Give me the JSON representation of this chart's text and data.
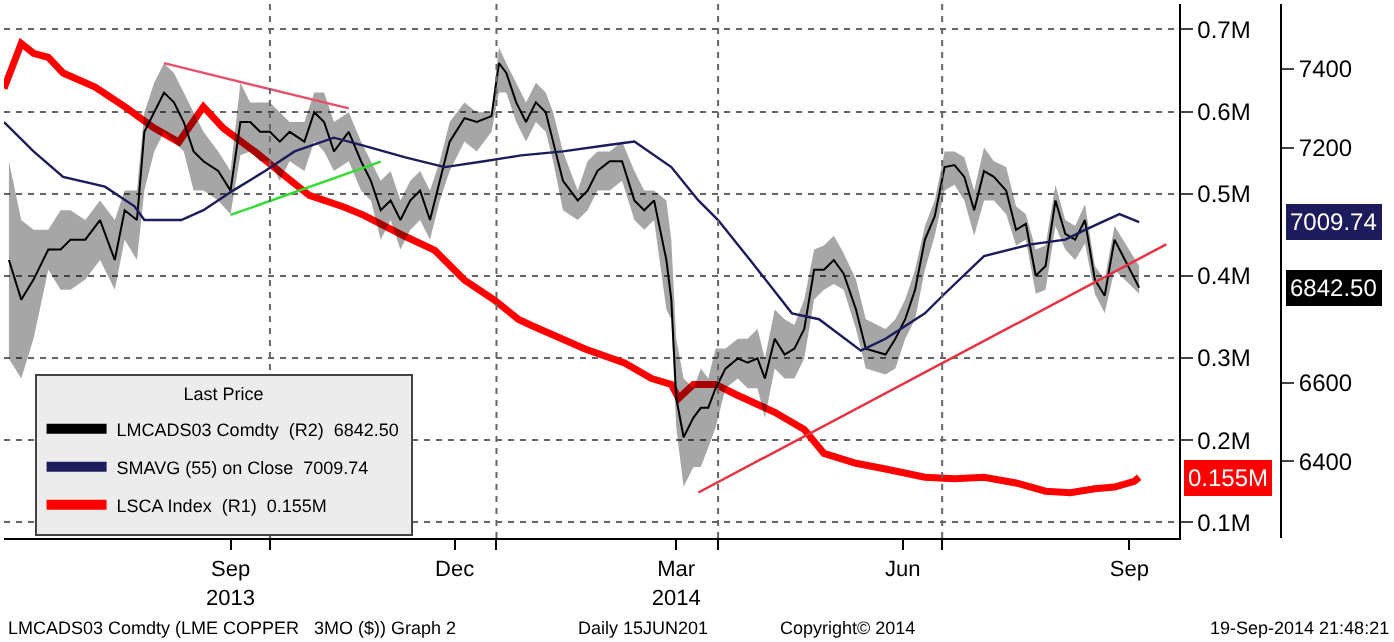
{
  "chart_data": {
    "type": "line",
    "xlim": [
      "2013-06-15",
      "2014-10-05"
    ],
    "xticks": [
      {
        "value": "2013-09-15",
        "label": "Sep\n2013"
      },
      {
        "value": "2013-12-15",
        "label": "Dec"
      },
      {
        "value": "2014-03-15",
        "label": "Mar\n2014"
      },
      {
        "value": "2014-06-15",
        "label": "Jun"
      },
      {
        "value": "2014-09-15",
        "label": "Sep"
      },
      {
        "value": "2013-10-01",
        "label": null
      },
      {
        "value": "2014-01-01",
        "label": null
      },
      {
        "value": "2014-04-01",
        "label": null
      },
      {
        "value": "2014-07-01",
        "label": null
      }
    ],
    "ylim": [
      0.081,
      0.731
    ],
    "yticks": [
      {
        "value": 0.1,
        "label": "0.1M"
      },
      {
        "value": 0.2,
        "label": "0.2M"
      },
      {
        "value": 0.3,
        "label": "0.3M"
      },
      {
        "value": 0.4,
        "label": "0.4M"
      },
      {
        "value": 0.5,
        "label": "0.5M"
      },
      {
        "value": 0.6,
        "label": "0.6M"
      },
      {
        "value": 0.7,
        "label": "0.7M"
      }
    ],
    "y2lim": [
      6204,
      7566
    ],
    "y2ticks": [
      6400,
      6600,
      7200,
      7400
    ],
    "grid": true,
    "legend": "bottom left",
    "legend_title": "Last Price",
    "series": [
      {
        "name": "LMCADS03 Comdty  (R2)  6842.50",
        "axis": "y2",
        "color": "#000000",
        "x": [
          "2013-06-17",
          "2013-06-22",
          "2013-06-27",
          "2013-07-03",
          "2013-07-08",
          "2013-07-12",
          "2013-07-18",
          "2013-07-24",
          "2013-07-30",
          "2013-08-03",
          "2013-08-08",
          "2013-08-11",
          "2013-08-15",
          "2013-08-19",
          "2013-08-23",
          "2013-08-27",
          "2013-08-31",
          "2013-09-04",
          "2013-09-10",
          "2013-09-15",
          "2013-09-19",
          "2013-09-23",
          "2013-09-27",
          "2013-10-01",
          "2013-10-05",
          "2013-10-09",
          "2013-10-15",
          "2013-10-19",
          "2013-10-23",
          "2013-10-27",
          "2013-11-02",
          "2013-11-07",
          "2013-11-11",
          "2013-11-15",
          "2013-11-19",
          "2013-11-23",
          "2013-11-27",
          "2013-12-01",
          "2013-12-05",
          "2013-12-09",
          "2013-12-13",
          "2013-12-19",
          "2013-12-24",
          "2013-12-30",
          "2014-01-02",
          "2014-01-05",
          "2014-01-09",
          "2014-01-13",
          "2014-01-17",
          "2014-01-21",
          "2014-01-24",
          "2014-01-28",
          "2014-02-03",
          "2014-02-07",
          "2014-02-11",
          "2014-02-16",
          "2014-02-21",
          "2014-02-26",
          "2014-03-02",
          "2014-03-06",
          "2014-03-11",
          "2014-03-13",
          "2014-03-15",
          "2014-03-18",
          "2014-03-22",
          "2014-03-25",
          "2014-03-28",
          "2014-03-31",
          "2014-04-04",
          "2014-04-09",
          "2014-04-13",
          "2014-04-17",
          "2014-04-20",
          "2014-04-24",
          "2014-04-28",
          "2014-05-02",
          "2014-05-06",
          "2014-05-10",
          "2014-05-14",
          "2014-05-18",
          "2014-05-22",
          "2014-05-27",
          "2014-05-31",
          "2014-06-08",
          "2014-06-12",
          "2014-06-16",
          "2014-06-20",
          "2014-06-24",
          "2014-06-28",
          "2014-07-02",
          "2014-07-06",
          "2014-07-10",
          "2014-07-14",
          "2014-07-18",
          "2014-07-22",
          "2014-07-27",
          "2014-07-31",
          "2014-08-04",
          "2014-08-08",
          "2014-08-12",
          "2014-08-16",
          "2014-08-20",
          "2014-08-24",
          "2014-08-28",
          "2014-09-01",
          "2014-09-05",
          "2014-09-09",
          "2014-09-19"
        ],
        "values": [
          6913,
          6812,
          6863,
          6940,
          6940,
          6965,
          6965,
          7015,
          6913,
          7040,
          7015,
          7240,
          7290,
          7340,
          7315,
          7265,
          7190,
          7165,
          7140,
          7090,
          7265,
          7265,
          7240,
          7240,
          7215,
          7240,
          7215,
          7290,
          7265,
          7190,
          7240,
          7165,
          7115,
          7040,
          7065,
          7015,
          7065,
          7090,
          7015,
          7115,
          7215,
          7275,
          7265,
          7280,
          7415,
          7390,
          7315,
          7265,
          7315,
          7290,
          7215,
          7115,
          7065,
          7090,
          7140,
          7165,
          7165,
          7065,
          7040,
          7065,
          6913,
          6812,
          6561,
          6461,
          6511,
          6536,
          6536,
          6586,
          6636,
          6662,
          6651,
          6662,
          6611,
          6712,
          6672,
          6687,
          6737,
          6888,
          6888,
          6913,
          6878,
          6787,
          6687,
          6672,
          6712,
          6762,
          6837,
          6965,
          7025,
          7150,
          7155,
          7125,
          7040,
          7140,
          7125,
          7090,
          6990,
          7005,
          6873,
          6898,
          7065,
          6980,
          6965,
          7015,
          6863,
          6822,
          6965,
          6842.5
        ],
        "upper": [
          7165,
          7015,
          6990,
          6990,
          7040,
          7040,
          7015,
          7065,
          7015,
          7090,
          7090,
          7290,
          7365,
          7415,
          7390,
          7340,
          7290,
          7240,
          7190,
          7140,
          7365,
          7315,
          7315,
          7315,
          7290,
          7265,
          7265,
          7340,
          7340,
          7265,
          7290,
          7215,
          7165,
          7115,
          7140,
          7065,
          7115,
          7140,
          7090,
          7165,
          7265,
          7315,
          7290,
          7290,
          7455,
          7415,
          7365,
          7315,
          7365,
          7340,
          7290,
          7190,
          7090,
          7165,
          7190,
          7190,
          7215,
          7140,
          7090,
          7090,
          7065,
          6965,
          6712,
          6611,
          6586,
          6636,
          6611,
          6687,
          6687,
          6712,
          6712,
          6737,
          6662,
          6787,
          6762,
          6747,
          6812,
          6940,
          6950,
          6975,
          6930,
          6863,
          6762,
          6737,
          6762,
          6812,
          6888,
          7000,
          7065,
          7190,
          7190,
          7175,
          7090,
          7200,
          7165,
          7150,
          7050,
          7030,
          6940,
          6950,
          7105,
          7015,
          7000,
          7055,
          6898,
          6863,
          7000,
          6898
        ],
        "lower": [
          6661,
          6611,
          6712,
          6888,
          6837,
          6837,
          6863,
          6913,
          6837,
          6965,
          6913,
          7090,
          7190,
          7240,
          7215,
          7190,
          7090,
          7090,
          7065,
          7030,
          7180,
          7190,
          7165,
          7165,
          7115,
          7165,
          7140,
          7215,
          7190,
          7140,
          7165,
          7090,
          7065,
          6965,
          7015,
          6940,
          6990,
          7015,
          6965,
          7065,
          7140,
          7215,
          7190,
          7240,
          7340,
          7340,
          7265,
          7215,
          7265,
          7240,
          7165,
          7040,
          7015,
          7040,
          7090,
          7090,
          7115,
          7015,
          6990,
          7015,
          6787,
          6762,
          6486,
          6335,
          6385,
          6385,
          6435,
          6486,
          6586,
          6611,
          6586,
          6586,
          6511,
          6636,
          6611,
          6611,
          6662,
          6812,
          6837,
          6852,
          6837,
          6737,
          6636,
          6621,
          6636,
          6712,
          6762,
          6888,
          6975,
          7090,
          7105,
          7065,
          6975,
          7065,
          7065,
          7030,
          6950,
          6965,
          6827,
          6837,
          7000,
          6940,
          6913,
          6955,
          6827,
          6777,
          6888,
          6827
        ]
      },
      {
        "name": "SMAVG (55) on Close  7009.74",
        "axis": "y2",
        "color": "#1c1c5c",
        "x": [
          "2013-06-15",
          "2013-06-27",
          "2013-07-09",
          "2013-07-26",
          "2013-08-07",
          "2013-08-11",
          "2013-08-26",
          "2013-09-04",
          "2013-09-16",
          "2013-09-29",
          "2013-10-11",
          "2013-10-27",
          "2013-11-08",
          "2013-11-25",
          "2013-12-11",
          "2013-12-27",
          "2014-01-11",
          "2014-01-28",
          "2014-02-14",
          "2014-02-26",
          "2014-03-13",
          "2014-03-24",
          "2014-04-01",
          "2014-04-14",
          "2014-05-01",
          "2014-05-12",
          "2014-05-29",
          "2014-06-08",
          "2014-06-24",
          "2014-07-02",
          "2014-07-18",
          "2014-08-06",
          "2014-08-20",
          "2014-08-28",
          "2014-09-11",
          "2014-09-19"
        ],
        "values": [
          7265,
          7190,
          7125,
          7100,
          7050,
          7015,
          7015,
          7040,
          7090,
          7140,
          7190,
          7225,
          7205,
          7175,
          7150,
          7165,
          7180,
          7190,
          7205,
          7215,
          7150,
          7065,
          7015,
          6913,
          6777,
          6762,
          6682,
          6712,
          6777,
          6827,
          6923,
          6953,
          6965,
          6990,
          7030,
          7009.74
        ]
      },
      {
        "name": "LSCA Index  (R1)  0.155M",
        "color": "#ff0000",
        "x": [
          "2013-06-15",
          "2013-06-22",
          "2013-06-27",
          "2013-07-03",
          "2013-07-09",
          "2013-07-22",
          "2013-08-03",
          "2013-08-15",
          "2013-08-25",
          "2013-09-04",
          "2013-09-12",
          "2013-09-25",
          "2013-10-07",
          "2013-10-17",
          "2013-10-31",
          "2013-11-08",
          "2013-11-25",
          "2013-12-07",
          "2013-12-19",
          "2013-12-31",
          "2014-01-10",
          "2014-01-15",
          "2014-02-06",
          "2014-02-22",
          "2014-03-05",
          "2014-03-13",
          "2014-03-16",
          "2014-03-22",
          "2014-03-31",
          "2014-04-08",
          "2014-04-24",
          "2014-05-06",
          "2014-05-14",
          "2014-05-27",
          "2014-06-08",
          "2014-06-24",
          "2014-07-06",
          "2014-07-18",
          "2014-07-31",
          "2014-08-12",
          "2014-08-22",
          "2014-09-01",
          "2014-09-09",
          "2014-09-17",
          "2014-09-19"
        ],
        "values": [
          0.628,
          0.683,
          0.671,
          0.666,
          0.647,
          0.63,
          0.606,
          0.58,
          0.563,
          0.606,
          0.58,
          0.551,
          0.522,
          0.498,
          0.484,
          0.474,
          0.448,
          0.431,
          0.395,
          0.371,
          0.347,
          0.34,
          0.311,
          0.294,
          0.275,
          0.268,
          0.251,
          0.268,
          0.268,
          0.256,
          0.234,
          0.213,
          0.184,
          0.172,
          0.165,
          0.155,
          0.153,
          0.155,
          0.148,
          0.138,
          0.136,
          0.141,
          0.143,
          0.15,
          0.155
        ]
      },
      {
        "axis": "y2",
        "color": "#e8506a",
        "x": [
          "2013-08-19",
          "2013-11-02"
        ],
        "values": [
          7415,
          7300
        ]
      },
      {
        "axis": "y2",
        "color": "#33dd33",
        "x": [
          "2013-09-15",
          "2013-11-15"
        ],
        "values": [
          7028,
          7164
        ]
      },
      {
        "axis": "y2",
        "color": "#e83040",
        "x": [
          "2014-03-24",
          "2014-09-30"
        ],
        "values": [
          6320,
          6953
        ]
      }
    ],
    "annotations": [
      "6842.50",
      "7009.74",
      "0.155M",
      "LMCADS03 Comdty (LME COPPER   3MO ($)) Graph 2",
      "Daily 15JUN201",
      "Copyright© 2014",
      "19-Sep-2014 21:48:21"
    ]
  }
}
